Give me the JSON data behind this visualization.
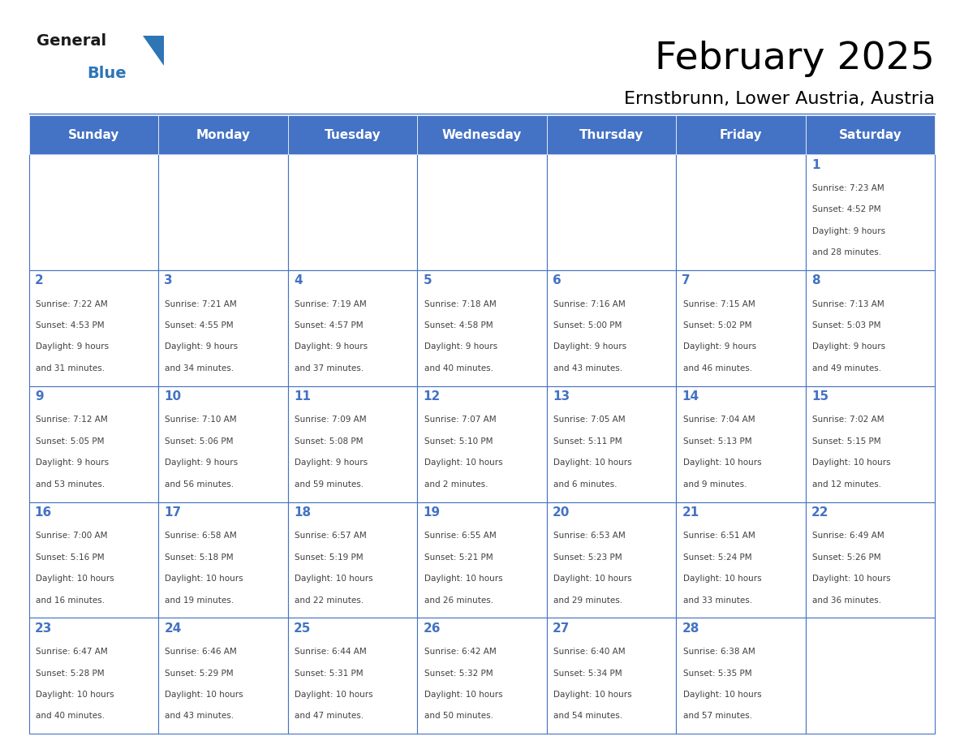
{
  "title": "February 2025",
  "subtitle": "Ernstbrunn, Lower Austria, Austria",
  "days_of_week": [
    "Sunday",
    "Monday",
    "Tuesday",
    "Wednesday",
    "Thursday",
    "Friday",
    "Saturday"
  ],
  "header_color": "#4472C4",
  "header_text_color": "#FFFFFF",
  "cell_bg_color": "#FFFFFF",
  "cell_border_color": "#4472C4",
  "title_color": "#000000",
  "subtitle_color": "#000000",
  "day_number_color": "#4472C4",
  "cell_text_color": "#404040",
  "logo_general_color": "#1a1a1a",
  "logo_blue_color": "#2E75B6",
  "background_color": "#FFFFFF",
  "calendar_data": [
    {
      "day": 1,
      "row": 0,
      "col": 6,
      "sunrise": "7:23 AM",
      "sunset": "4:52 PM",
      "daylight_hours": 9,
      "daylight_minutes": 28
    },
    {
      "day": 2,
      "row": 1,
      "col": 0,
      "sunrise": "7:22 AM",
      "sunset": "4:53 PM",
      "daylight_hours": 9,
      "daylight_minutes": 31
    },
    {
      "day": 3,
      "row": 1,
      "col": 1,
      "sunrise": "7:21 AM",
      "sunset": "4:55 PM",
      "daylight_hours": 9,
      "daylight_minutes": 34
    },
    {
      "day": 4,
      "row": 1,
      "col": 2,
      "sunrise": "7:19 AM",
      "sunset": "4:57 PM",
      "daylight_hours": 9,
      "daylight_minutes": 37
    },
    {
      "day": 5,
      "row": 1,
      "col": 3,
      "sunrise": "7:18 AM",
      "sunset": "4:58 PM",
      "daylight_hours": 9,
      "daylight_minutes": 40
    },
    {
      "day": 6,
      "row": 1,
      "col": 4,
      "sunrise": "7:16 AM",
      "sunset": "5:00 PM",
      "daylight_hours": 9,
      "daylight_minutes": 43
    },
    {
      "day": 7,
      "row": 1,
      "col": 5,
      "sunrise": "7:15 AM",
      "sunset": "5:02 PM",
      "daylight_hours": 9,
      "daylight_minutes": 46
    },
    {
      "day": 8,
      "row": 1,
      "col": 6,
      "sunrise": "7:13 AM",
      "sunset": "5:03 PM",
      "daylight_hours": 9,
      "daylight_minutes": 49
    },
    {
      "day": 9,
      "row": 2,
      "col": 0,
      "sunrise": "7:12 AM",
      "sunset": "5:05 PM",
      "daylight_hours": 9,
      "daylight_minutes": 53
    },
    {
      "day": 10,
      "row": 2,
      "col": 1,
      "sunrise": "7:10 AM",
      "sunset": "5:06 PM",
      "daylight_hours": 9,
      "daylight_minutes": 56
    },
    {
      "day": 11,
      "row": 2,
      "col": 2,
      "sunrise": "7:09 AM",
      "sunset": "5:08 PM",
      "daylight_hours": 9,
      "daylight_minutes": 59
    },
    {
      "day": 12,
      "row": 2,
      "col": 3,
      "sunrise": "7:07 AM",
      "sunset": "5:10 PM",
      "daylight_hours": 10,
      "daylight_minutes": 2
    },
    {
      "day": 13,
      "row": 2,
      "col": 4,
      "sunrise": "7:05 AM",
      "sunset": "5:11 PM",
      "daylight_hours": 10,
      "daylight_minutes": 6
    },
    {
      "day": 14,
      "row": 2,
      "col": 5,
      "sunrise": "7:04 AM",
      "sunset": "5:13 PM",
      "daylight_hours": 10,
      "daylight_minutes": 9
    },
    {
      "day": 15,
      "row": 2,
      "col": 6,
      "sunrise": "7:02 AM",
      "sunset": "5:15 PM",
      "daylight_hours": 10,
      "daylight_minutes": 12
    },
    {
      "day": 16,
      "row": 3,
      "col": 0,
      "sunrise": "7:00 AM",
      "sunset": "5:16 PM",
      "daylight_hours": 10,
      "daylight_minutes": 16
    },
    {
      "day": 17,
      "row": 3,
      "col": 1,
      "sunrise": "6:58 AM",
      "sunset": "5:18 PM",
      "daylight_hours": 10,
      "daylight_minutes": 19
    },
    {
      "day": 18,
      "row": 3,
      "col": 2,
      "sunrise": "6:57 AM",
      "sunset": "5:19 PM",
      "daylight_hours": 10,
      "daylight_minutes": 22
    },
    {
      "day": 19,
      "row": 3,
      "col": 3,
      "sunrise": "6:55 AM",
      "sunset": "5:21 PM",
      "daylight_hours": 10,
      "daylight_minutes": 26
    },
    {
      "day": 20,
      "row": 3,
      "col": 4,
      "sunrise": "6:53 AM",
      "sunset": "5:23 PM",
      "daylight_hours": 10,
      "daylight_minutes": 29
    },
    {
      "day": 21,
      "row": 3,
      "col": 5,
      "sunrise": "6:51 AM",
      "sunset": "5:24 PM",
      "daylight_hours": 10,
      "daylight_minutes": 33
    },
    {
      "day": 22,
      "row": 3,
      "col": 6,
      "sunrise": "6:49 AM",
      "sunset": "5:26 PM",
      "daylight_hours": 10,
      "daylight_minutes": 36
    },
    {
      "day": 23,
      "row": 4,
      "col": 0,
      "sunrise": "6:47 AM",
      "sunset": "5:28 PM",
      "daylight_hours": 10,
      "daylight_minutes": 40
    },
    {
      "day": 24,
      "row": 4,
      "col": 1,
      "sunrise": "6:46 AM",
      "sunset": "5:29 PM",
      "daylight_hours": 10,
      "daylight_minutes": 43
    },
    {
      "day": 25,
      "row": 4,
      "col": 2,
      "sunrise": "6:44 AM",
      "sunset": "5:31 PM",
      "daylight_hours": 10,
      "daylight_minutes": 47
    },
    {
      "day": 26,
      "row": 4,
      "col": 3,
      "sunrise": "6:42 AM",
      "sunset": "5:32 PM",
      "daylight_hours": 10,
      "daylight_minutes": 50
    },
    {
      "day": 27,
      "row": 4,
      "col": 4,
      "sunrise": "6:40 AM",
      "sunset": "5:34 PM",
      "daylight_hours": 10,
      "daylight_minutes": 54
    },
    {
      "day": 28,
      "row": 4,
      "col": 5,
      "sunrise": "6:38 AM",
      "sunset": "5:35 PM",
      "daylight_hours": 10,
      "daylight_minutes": 57
    }
  ],
  "num_rows": 5,
  "num_cols": 7
}
